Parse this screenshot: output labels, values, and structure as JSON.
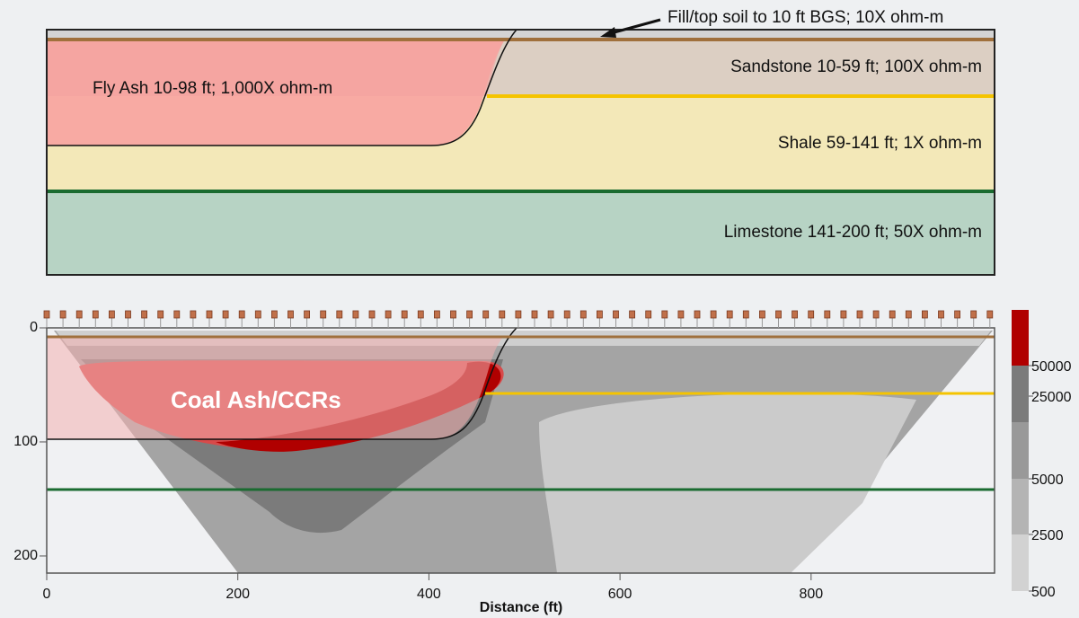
{
  "model": {
    "annotation": "Fill/top soil to 10 ft BGS; 10X ohm-m",
    "layers": [
      "Sandstone 10-59 ft; 100X ohm-m",
      "Fly Ash 10-98 ft; 1,000X ohm-m",
      "Shale 59-141 ft; 1X ohm-m",
      "Limestone 141-200 ft; 50X ohm-m"
    ]
  },
  "section": {
    "label": "Coal Ash/CCRs",
    "x_label": "Distance (ft)",
    "xlim": [
      0,
      992
    ],
    "xticks": [
      0,
      200,
      400,
      600,
      800
    ],
    "ylim": [
      0,
      215
    ],
    "yticks": [
      0,
      100,
      200
    ]
  },
  "colorbar": {
    "ticks": [
      50000,
      25000,
      5000,
      2500,
      500
    ]
  }
}
